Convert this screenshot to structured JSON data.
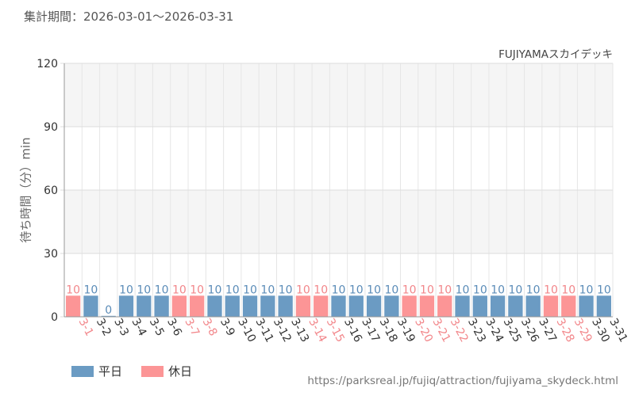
{
  "header": {
    "period": "集計期間：2026-03-01～2026-03-31"
  },
  "legend": {
    "weekday_label": "平日",
    "holiday_label": "休日"
  },
  "footer": {
    "source": "https://parksreal.jp/fujiq/attraction/fujiyama_skydeck.html"
  },
  "colors": {
    "weekday": "#6b9bc3",
    "holiday": "#fc9596",
    "weekday_text": "#5b8cb8",
    "holiday_text": "#f2868a",
    "axis_text": "#333333"
  },
  "chart_data": {
    "type": "bar",
    "title": "FUJIYAMAスカイデッキ",
    "xlabel": "",
    "ylabel": "待ち時間（分）min",
    "ylim": [
      0,
      120
    ],
    "yticks": [
      0,
      30,
      60,
      90,
      120
    ],
    "grid": true,
    "legend_position": "bottom-left",
    "categories": [
      "3-1",
      "3-2",
      "3-3",
      "3-4",
      "3-5",
      "3-6",
      "3-7",
      "3-8",
      "3-9",
      "3-10",
      "3-11",
      "3-12",
      "3-13",
      "3-14",
      "3-15",
      "3-16",
      "3-17",
      "3-18",
      "3-19",
      "3-20",
      "3-21",
      "3-22",
      "3-23",
      "3-24",
      "3-25",
      "3-26",
      "3-27",
      "3-28",
      "3-29",
      "3-30",
      "3-31"
    ],
    "values": [
      10,
      10,
      0,
      10,
      10,
      10,
      10,
      10,
      10,
      10,
      10,
      10,
      10,
      10,
      10,
      10,
      10,
      10,
      10,
      10,
      10,
      10,
      10,
      10,
      10,
      10,
      10,
      10,
      10,
      10,
      10
    ],
    "day_type": [
      "holiday",
      "weekday",
      "weekday",
      "weekday",
      "weekday",
      "weekday",
      "holiday",
      "holiday",
      "weekday",
      "weekday",
      "weekday",
      "weekday",
      "weekday",
      "holiday",
      "holiday",
      "weekday",
      "weekday",
      "weekday",
      "weekday",
      "holiday",
      "holiday",
      "holiday",
      "weekday",
      "weekday",
      "weekday",
      "weekday",
      "weekday",
      "holiday",
      "holiday",
      "weekday",
      "weekday"
    ],
    "series": [
      {
        "name": "平日",
        "key": "weekday"
      },
      {
        "name": "休日",
        "key": "holiday"
      }
    ]
  }
}
